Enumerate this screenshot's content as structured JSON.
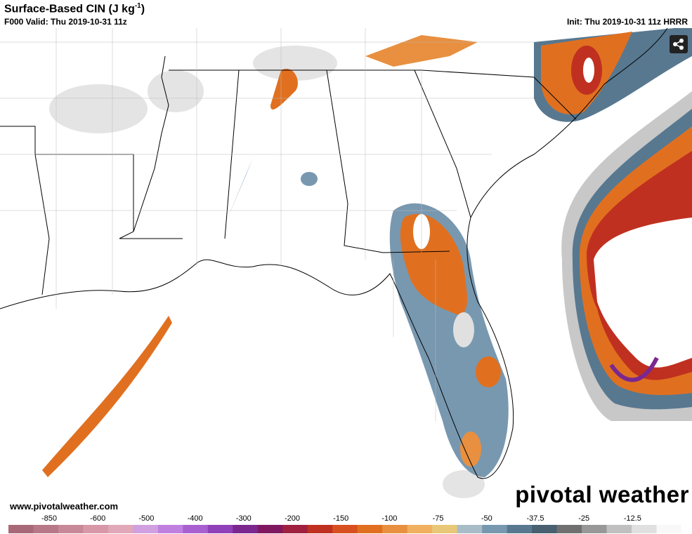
{
  "header": {
    "title": "Surface-Based CIN (J kg",
    "title_sup": "-1",
    "title_end": ")",
    "valid": "F000 Valid: Thu 2019-10-31 11z",
    "init": "Init: Thu 2019-10-31 11z HRRR"
  },
  "footer": {
    "site": "www.pivotalweather.com",
    "logo": "pivotal weather"
  },
  "colorbar": {
    "labels": [
      -850,
      -600,
      -500,
      -400,
      -300,
      -200,
      -150,
      -100,
      -75,
      -50,
      -37.5,
      -25,
      -12.5
    ],
    "colors": [
      "#a86878",
      "#b87888",
      "#c88898",
      "#d898a8",
      "#e0a8b8",
      "#d0a0e0",
      "#c080e0",
      "#a860d0",
      "#9040b8",
      "#7a2890",
      "#801860",
      "#a02040",
      "#c03020",
      "#d85020",
      "#e07020",
      "#e89040",
      "#f0b060",
      "#e8c878",
      "#a8bcc8",
      "#7898b0",
      "#587890",
      "#486070",
      "#707070",
      "#989898",
      "#c0c0c0",
      "#e0e0e0",
      "#f8f8f8"
    ]
  }
}
